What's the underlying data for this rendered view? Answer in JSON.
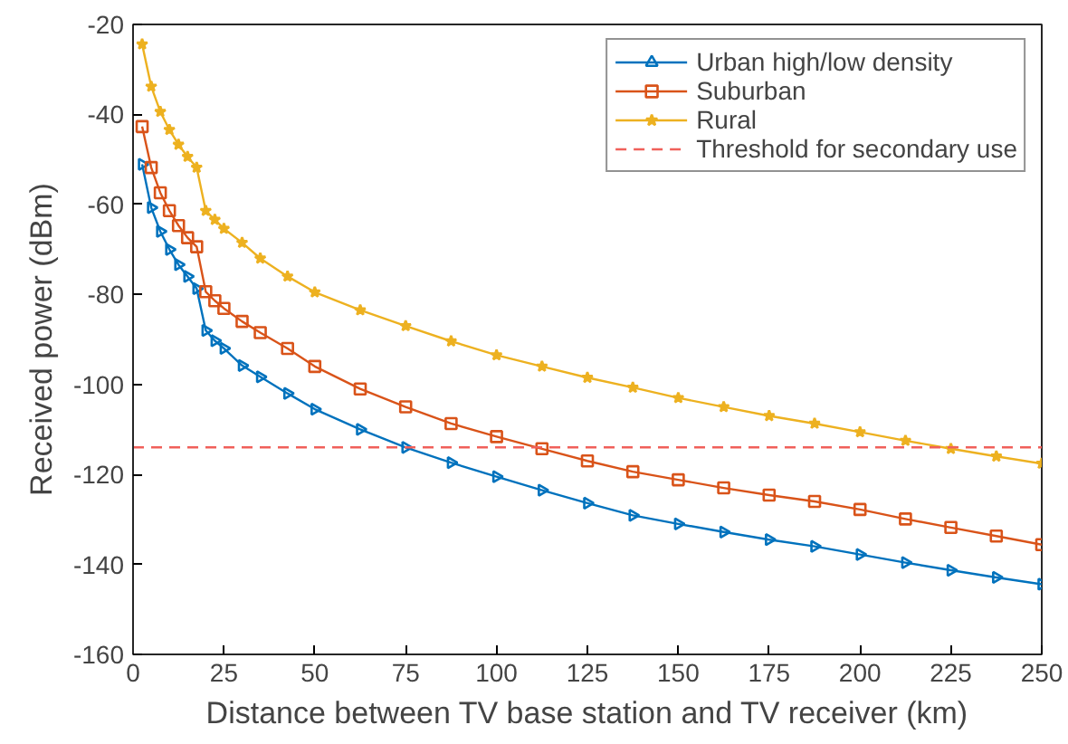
{
  "chart_data": {
    "type": "line",
    "xlabel": "Distance between TV base station and TV receiver (km)",
    "ylabel": "Received power (dBm)",
    "x": [
      2.5,
      5,
      7.5,
      10,
      12.5,
      15,
      17.5,
      20,
      22.5,
      25,
      30,
      35,
      42.5,
      50,
      62.5,
      75,
      87.5,
      100,
      112.5,
      125,
      137.5,
      150,
      162.5,
      175,
      187.5,
      200,
      212.5,
      225,
      237.5,
      250
    ],
    "series": [
      {
        "name": "Urban high/low density",
        "color": "#0072bd",
        "marker": "triangle",
        "values": [
          -51.1,
          -60.7,
          -66,
          -70,
          -73.4,
          -76,
          -78.7,
          -88,
          -90.3,
          -92,
          -95.8,
          -98.3,
          -102,
          -105.5,
          -110,
          -114,
          -117.4,
          -120.5,
          -123.5,
          -126.4,
          -129.1,
          -131,
          -132.8,
          -134.5,
          -136,
          -137.8,
          -139.6,
          -141.3,
          -142.9,
          -144.4
        ]
      },
      {
        "name": "Suburban",
        "color": "#d95319",
        "marker": "square",
        "values": [
          -42.7,
          -51.8,
          -57.4,
          -61.4,
          -64.7,
          -67.4,
          -69.4,
          -79.4,
          -81.4,
          -83.1,
          -86,
          -88.5,
          -92,
          -96,
          -101,
          -105,
          -108.7,
          -111.6,
          -114.3,
          -117,
          -119.4,
          -121.2,
          -123,
          -124.6,
          -126,
          -127.8,
          -129.9,
          -131.8,
          -133.7,
          -135.6
        ]
      },
      {
        "name": "Rural",
        "color": "#edb120",
        "marker": "star",
        "values": [
          -24.4,
          -33.8,
          -39.4,
          -43.4,
          -46.7,
          -49.4,
          -51.8,
          -61.4,
          -63.4,
          -65.4,
          -68.5,
          -72,
          -76,
          -79.5,
          -83.5,
          -87,
          -90.4,
          -93.5,
          -96,
          -98.5,
          -100.7,
          -103,
          -105,
          -107,
          -108.7,
          -110.6,
          -112.5,
          -114.3,
          -116,
          -117.6
        ]
      }
    ],
    "ref_lines": [
      {
        "axis": "y",
        "value": -114,
        "label": "Threshold for secondary use",
        "color": "#f0605a",
        "line_style": "dashed"
      }
    ],
    "xlim": [
      0,
      250
    ],
    "xticks": [
      0,
      25,
      50,
      75,
      100,
      125,
      150,
      175,
      200,
      225,
      250
    ],
    "ylim": [
      -160,
      -20
    ],
    "yticks": [
      -160,
      -140,
      -120,
      -100,
      -80,
      -60,
      -40,
      -20
    ],
    "grid": false,
    "legend": "top right",
    "line_style": "solid"
  }
}
